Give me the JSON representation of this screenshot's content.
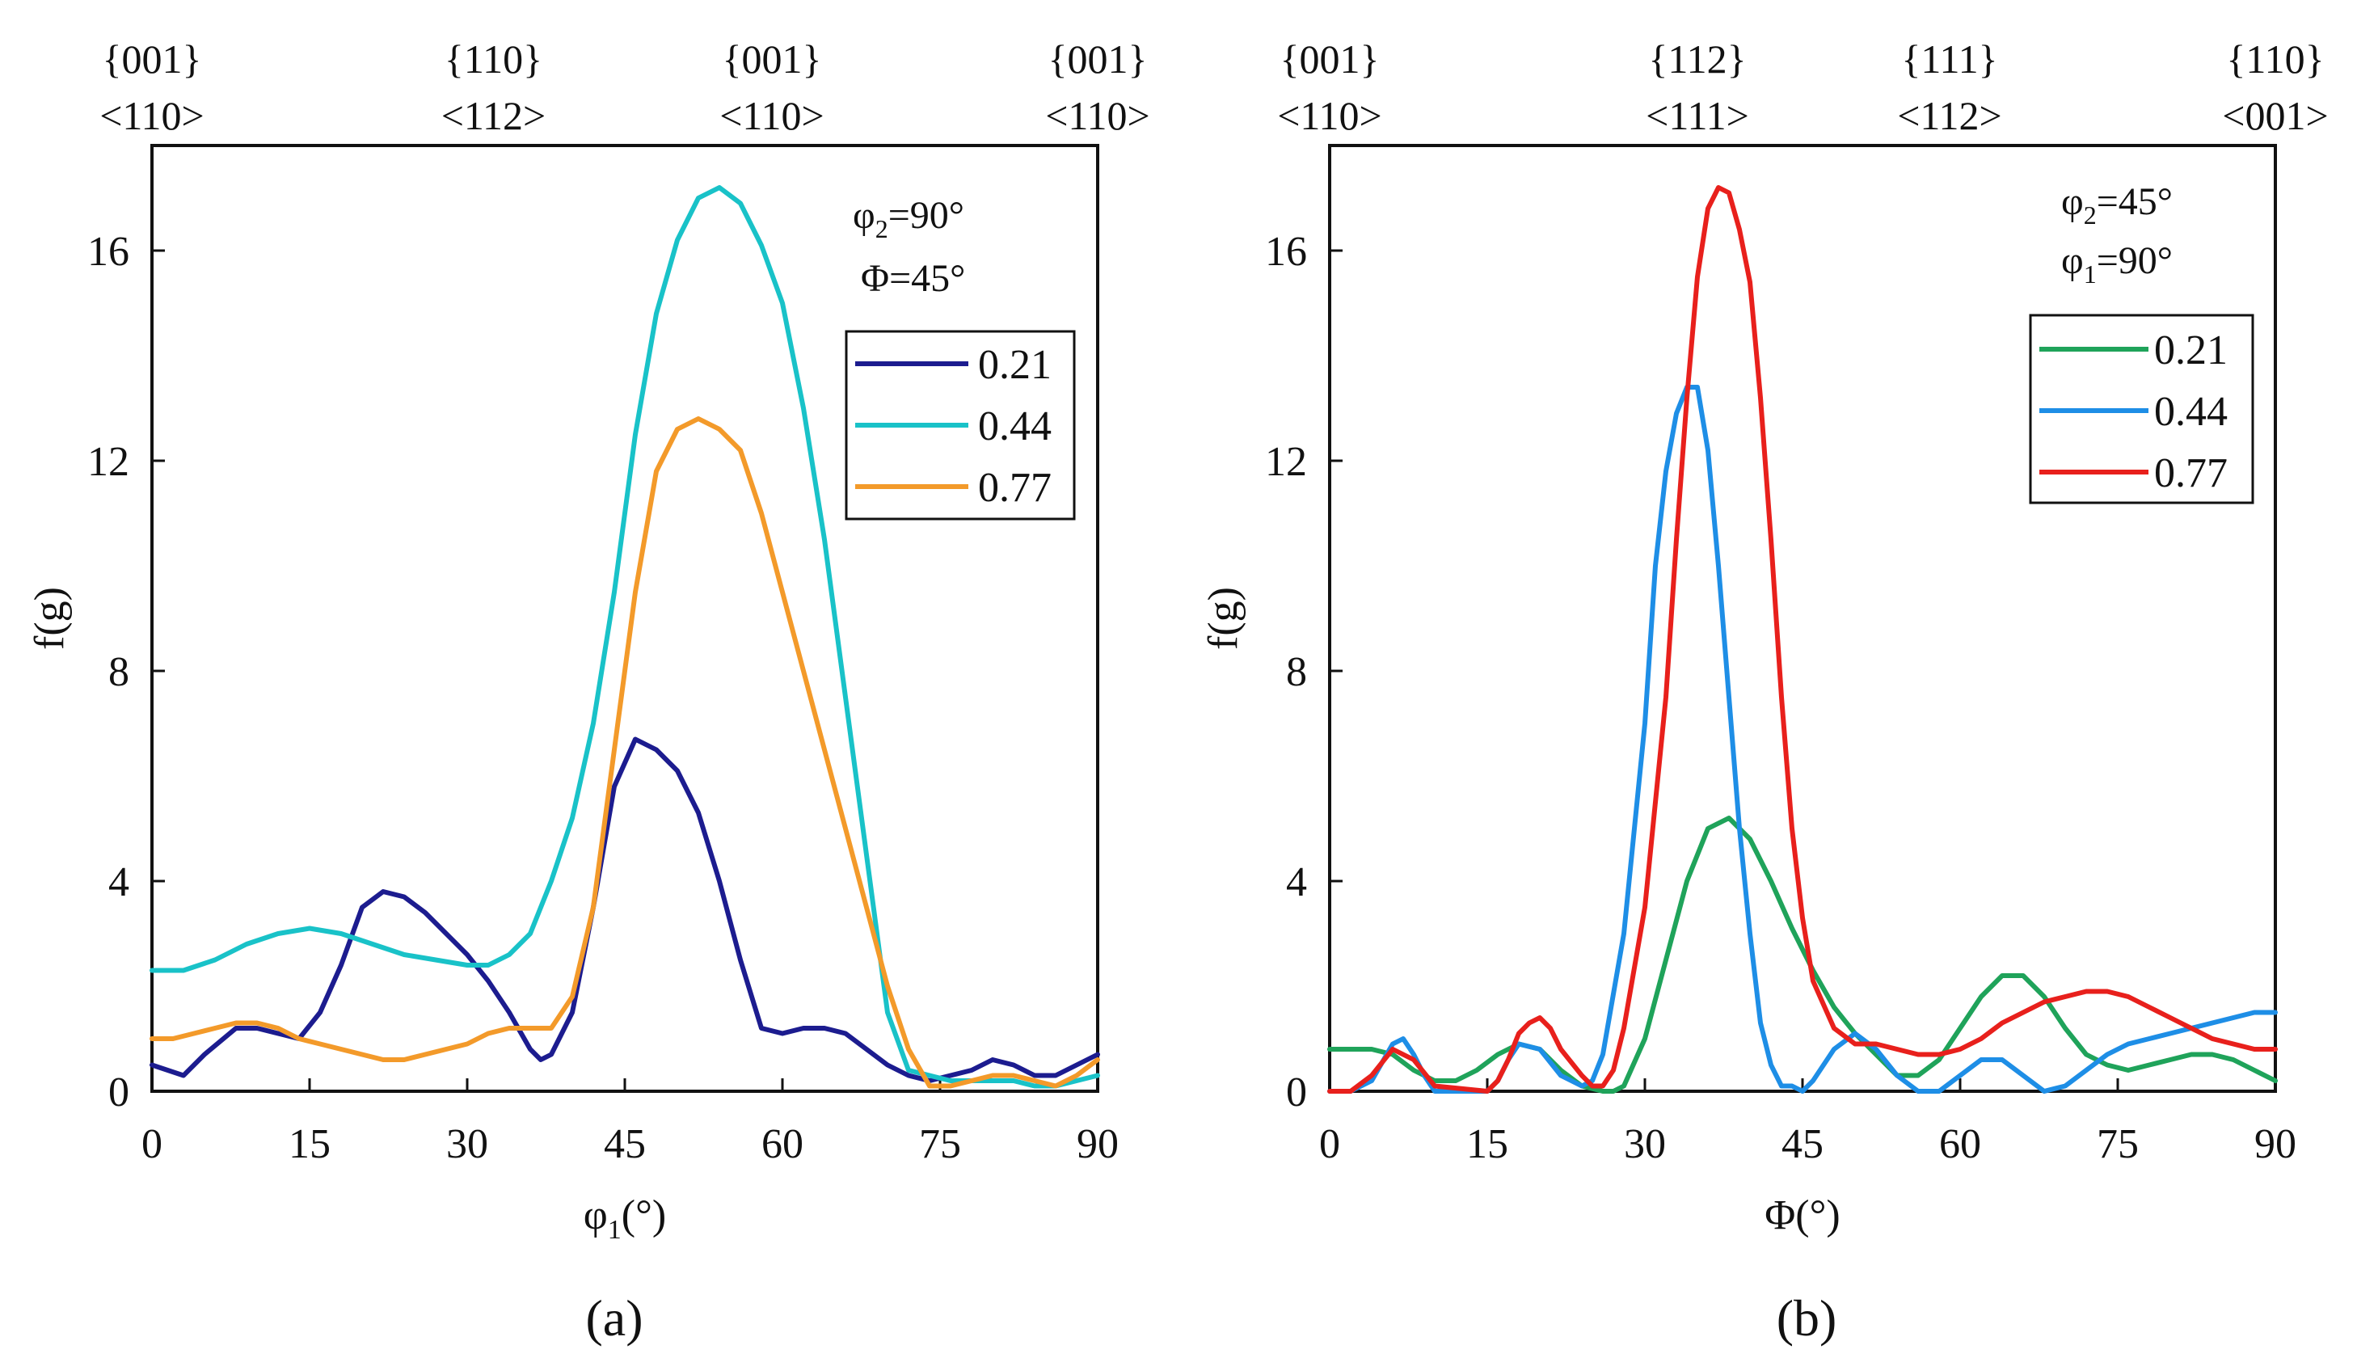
{
  "chart_data": [
    {
      "panel_label": "(a)",
      "type": "line",
      "xlabel_symbol": "φ",
      "xlabel_subscript": "1",
      "xlabel_unit": "(°)",
      "ylabel": "f(g)",
      "xlim": [
        0,
        90
      ],
      "ylim": [
        0,
        18
      ],
      "xticks": [
        "0",
        "15",
        "30",
        "45",
        "60",
        "75",
        "90"
      ],
      "yticks": [
        "0",
        "4",
        "8",
        "12",
        "16"
      ],
      "ytick_values": [
        0,
        4,
        8,
        12,
        16
      ],
      "top_annotations": [
        {
          "x": 0,
          "plane": "{001}",
          "direction": "<110>"
        },
        {
          "x": 32.5,
          "plane": "{110}",
          "direction": "<112>"
        },
        {
          "x": 59,
          "plane": "{001}",
          "direction": "<110>"
        },
        {
          "x": 90,
          "plane": "{001}",
          "direction": "<110>"
        }
      ],
      "conditions": [
        {
          "sym": "φ",
          "sub": "2",
          "rest": "=90°"
        },
        {
          "sym": "Φ",
          "sub": "",
          "rest": "=45°"
        }
      ],
      "legend_position": "upper-right",
      "series": [
        {
          "name": "0.21",
          "color": "#1c1c8f",
          "x": [
            0,
            3,
            5,
            8,
            10,
            12,
            14,
            16,
            18,
            20,
            22,
            24,
            26,
            28,
            30,
            32,
            34,
            36,
            37,
            38,
            40,
            42,
            44,
            46,
            48,
            50,
            52,
            54,
            56,
            58,
            60,
            62,
            64,
            66,
            68,
            70,
            72,
            74,
            76,
            78,
            80,
            82,
            84,
            86,
            88,
            90
          ],
          "y": [
            0.5,
            0.3,
            0.7,
            1.2,
            1.2,
            1.1,
            1.0,
            1.5,
            2.4,
            3.5,
            3.8,
            3.7,
            3.4,
            3.0,
            2.6,
            2.1,
            1.5,
            0.8,
            0.6,
            0.7,
            1.5,
            3.5,
            5.8,
            6.7,
            6.5,
            6.1,
            5.3,
            4.0,
            2.5,
            1.2,
            1.1,
            1.2,
            1.2,
            1.1,
            0.8,
            0.5,
            0.3,
            0.2,
            0.3,
            0.4,
            0.6,
            0.5,
            0.3,
            0.3,
            0.5,
            0.7
          ]
        },
        {
          "name": "0.44",
          "color": "#19c2c8",
          "x": [
            0,
            3,
            6,
            9,
            12,
            15,
            18,
            21,
            24,
            27,
            30,
            32,
            34,
            36,
            37,
            38,
            40,
            42,
            44,
            46,
            48,
            50,
            52,
            54,
            56,
            58,
            60,
            62,
            64,
            66,
            68,
            70,
            72,
            74,
            76,
            78,
            80,
            82,
            84,
            86,
            88,
            90
          ],
          "y": [
            2.3,
            2.3,
            2.5,
            2.8,
            3.0,
            3.1,
            3.0,
            2.8,
            2.6,
            2.5,
            2.4,
            2.4,
            2.6,
            3.0,
            3.5,
            4.0,
            5.2,
            7.0,
            9.5,
            12.5,
            14.8,
            16.2,
            17.0,
            17.2,
            16.9,
            16.1,
            15.0,
            13.0,
            10.5,
            7.5,
            4.5,
            1.5,
            0.4,
            0.3,
            0.2,
            0.2,
            0.2,
            0.2,
            0.1,
            0.1,
            0.2,
            0.3
          ]
        },
        {
          "name": "0.77",
          "color": "#f39a2a",
          "x": [
            0,
            2,
            4,
            6,
            8,
            10,
            12,
            14,
            16,
            18,
            20,
            22,
            24,
            26,
            28,
            30,
            32,
            34,
            36,
            38,
            40,
            42,
            44,
            46,
            48,
            50,
            52,
            54,
            56,
            58,
            60,
            62,
            64,
            66,
            68,
            70,
            72,
            74,
            76,
            78,
            80,
            82,
            84,
            86,
            88,
            90
          ],
          "y": [
            1.0,
            1.0,
            1.1,
            1.2,
            1.3,
            1.3,
            1.2,
            1.0,
            0.9,
            0.8,
            0.7,
            0.6,
            0.6,
            0.7,
            0.8,
            0.9,
            1.1,
            1.2,
            1.2,
            1.2,
            1.8,
            3.5,
            6.5,
            9.5,
            11.8,
            12.6,
            12.8,
            12.6,
            12.2,
            11.0,
            9.5,
            8.0,
            6.5,
            5.0,
            3.5,
            2.0,
            0.8,
            0.1,
            0.1,
            0.2,
            0.3,
            0.3,
            0.2,
            0.1,
            0.3,
            0.6
          ]
        }
      ]
    },
    {
      "panel_label": "(b)",
      "type": "line",
      "xlabel_symbol": "Φ",
      "xlabel_subscript": "",
      "xlabel_unit": "(°)",
      "ylabel": "f(g)",
      "xlim": [
        0,
        90
      ],
      "ylim": [
        0,
        18
      ],
      "xticks": [
        "0",
        "15",
        "30",
        "45",
        "60",
        "75",
        "90"
      ],
      "yticks": [
        "0",
        "4",
        "8",
        "12",
        "16"
      ],
      "ytick_values": [
        0,
        4,
        8,
        12,
        16
      ],
      "top_annotations": [
        {
          "x": 0,
          "plane": "{001}",
          "direction": "<110>"
        },
        {
          "x": 35,
          "plane": "{112}",
          "direction": "<111>"
        },
        {
          "x": 59,
          "plane": "{111}",
          "direction": "<112>"
        },
        {
          "x": 90,
          "plane": "{110}",
          "direction": "<001>"
        }
      ],
      "conditions": [
        {
          "sym": "φ",
          "sub": "2",
          "rest": "=45°"
        },
        {
          "sym": "φ",
          "sub": "1",
          "rest": "=90°"
        }
      ],
      "legend_position": "upper-right",
      "series": [
        {
          "name": "0.21",
          "color": "#1fa35a",
          "x": [
            0,
            2,
            4,
            6,
            8,
            10,
            12,
            14,
            16,
            18,
            20,
            22,
            24,
            26,
            27,
            28,
            30,
            32,
            34,
            36,
            38,
            40,
            42,
            44,
            46,
            48,
            50,
            52,
            54,
            56,
            58,
            60,
            62,
            64,
            66,
            68,
            70,
            72,
            74,
            76,
            78,
            80,
            82,
            84,
            86,
            88,
            90
          ],
          "y": [
            0.8,
            0.8,
            0.8,
            0.7,
            0.4,
            0.2,
            0.2,
            0.4,
            0.7,
            0.9,
            0.8,
            0.4,
            0.1,
            0.0,
            0.0,
            0.1,
            1.0,
            2.5,
            4.0,
            5.0,
            5.2,
            4.8,
            4.0,
            3.1,
            2.3,
            1.6,
            1.1,
            0.7,
            0.3,
            0.3,
            0.6,
            1.2,
            1.8,
            2.2,
            2.2,
            1.8,
            1.2,
            0.7,
            0.5,
            0.4,
            0.5,
            0.6,
            0.7,
            0.7,
            0.6,
            0.4,
            0.2
          ]
        },
        {
          "name": "0.44",
          "color": "#1e8ee6",
          "x": [
            0,
            2,
            4,
            6,
            7,
            8,
            9,
            10,
            15,
            16,
            17,
            18,
            20,
            22,
            24,
            25,
            26,
            28,
            30,
            31,
            32,
            33,
            34,
            35,
            36,
            37,
            38,
            39,
            40,
            41,
            42,
            43,
            44,
            45,
            46,
            48,
            50,
            52,
            54,
            56,
            58,
            60,
            62,
            64,
            66,
            68,
            70,
            72,
            74,
            76,
            78,
            80,
            82,
            84,
            86,
            88,
            90
          ],
          "y": [
            0,
            0,
            0.2,
            0.9,
            1.0,
            0.7,
            0.3,
            0.0,
            0.0,
            0.2,
            0.6,
            0.9,
            0.8,
            0.3,
            0.1,
            0.2,
            0.7,
            3.0,
            7.0,
            10.0,
            11.8,
            12.9,
            13.4,
            13.4,
            12.2,
            10.0,
            7.5,
            5.0,
            3.0,
            1.3,
            0.5,
            0.1,
            0.1,
            0.0,
            0.2,
            0.8,
            1.1,
            0.8,
            0.3,
            0.0,
            0.0,
            0.3,
            0.6,
            0.6,
            0.3,
            0.0,
            0.1,
            0.4,
            0.7,
            0.9,
            1.0,
            1.1,
            1.2,
            1.3,
            1.4,
            1.5,
            1.5
          ]
        },
        {
          "name": "0.77",
          "color": "#e8201c",
          "x": [
            0,
            2,
            4,
            6,
            8,
            10,
            15,
            16,
            17,
            18,
            19,
            20,
            21,
            22,
            24,
            25,
            26,
            27,
            28,
            30,
            32,
            33,
            34,
            35,
            36,
            37,
            38,
            39,
            40,
            41,
            42,
            43,
            44,
            45,
            46,
            48,
            50,
            52,
            54,
            56,
            58,
            60,
            62,
            64,
            66,
            68,
            70,
            72,
            74,
            76,
            78,
            80,
            82,
            84,
            86,
            88,
            90
          ],
          "y": [
            0,
            0,
            0.3,
            0.8,
            0.6,
            0.1,
            0.0,
            0.2,
            0.6,
            1.1,
            1.3,
            1.4,
            1.2,
            0.8,
            0.3,
            0.1,
            0.1,
            0.4,
            1.2,
            3.5,
            7.5,
            10.5,
            13.2,
            15.5,
            16.8,
            17.2,
            17.1,
            16.4,
            15.4,
            13.2,
            10.5,
            7.5,
            5.0,
            3.3,
            2.1,
            1.2,
            0.9,
            0.9,
            0.8,
            0.7,
            0.7,
            0.8,
            1.0,
            1.3,
            1.5,
            1.7,
            1.8,
            1.9,
            1.9,
            1.8,
            1.6,
            1.4,
            1.2,
            1.0,
            0.9,
            0.8,
            0.8
          ]
        }
      ]
    }
  ]
}
